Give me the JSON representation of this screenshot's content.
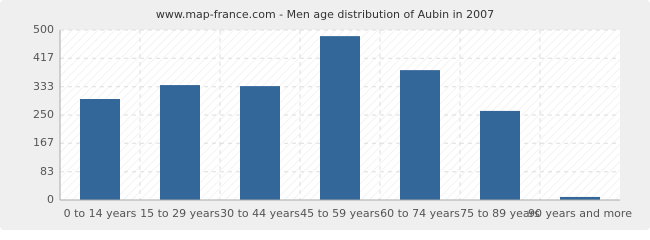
{
  "chart_data": {
    "type": "bar",
    "title": "www.map-france.com - Men age distribution of Aubin in 2007",
    "categories": [
      "0 to 14 years",
      "15 to 29 years",
      "30 to 44 years",
      "45 to 59 years",
      "60 to 74 years",
      "75 to 89 years",
      "90 years and more"
    ],
    "values": [
      297,
      338,
      335,
      482,
      382,
      262,
      9
    ],
    "color": "#336699",
    "ylim": [
      0,
      500
    ],
    "yticks": [
      0,
      83,
      167,
      250,
      333,
      417,
      500
    ],
    "grid": true
  }
}
